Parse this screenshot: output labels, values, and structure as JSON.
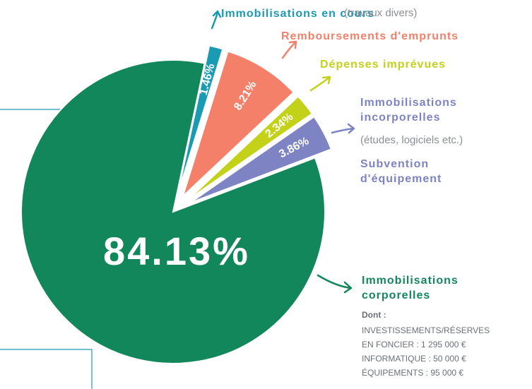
{
  "chart_data": {
    "type": "pie",
    "categories": [
      "Immobilisations corporelles",
      "Immobilisations en cours",
      "Remboursements d'emprunts",
      "Dépenses imprévues",
      "Immobilisations incorporelles"
    ],
    "values": [
      84.13,
      1.46,
      8.21,
      2.34,
      3.86
    ],
    "value_labels": [
      "84.13%",
      "1.46%",
      "8.21%",
      "2.34%",
      "3.86%"
    ],
    "colors": [
      "#12875b",
      "#1a9bb3",
      "#f4806a",
      "#c3d118",
      "#7d83c3"
    ],
    "annotations": [
      "(travaux divers)",
      "(études, logiciels etc.)",
      "Subvention d'équipement",
      "Dont :",
      "INVESTISSEMENTS/RÉSERVES",
      "EN FONCIER : 1 295 000 €",
      "INFORMATIQUE : 50 000 €",
      "ÉQUIPEMENTS : 95 000 €"
    ]
  }
}
